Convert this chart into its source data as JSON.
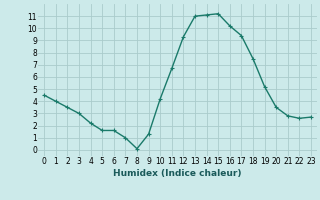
{
  "x": [
    0,
    1,
    2,
    3,
    4,
    5,
    6,
    7,
    8,
    9,
    10,
    11,
    12,
    13,
    14,
    15,
    16,
    17,
    18,
    19,
    20,
    21,
    22,
    23
  ],
  "y": [
    4.5,
    4.0,
    3.5,
    3.0,
    2.2,
    1.6,
    1.6,
    1.0,
    0.1,
    1.3,
    4.2,
    6.7,
    9.3,
    11.0,
    11.1,
    11.2,
    10.2,
    9.4,
    7.5,
    5.2,
    3.5,
    2.8,
    2.6,
    2.7
  ],
  "line_color": "#1a7a6a",
  "marker": "+",
  "marker_size": 3,
  "bg_color": "#cceaea",
  "grid_color": "#aacccc",
  "xlabel": "Humidex (Indice chaleur)",
  "xlim": [
    -0.5,
    23.5
  ],
  "ylim": [
    -0.5,
    12.0
  ],
  "xticks": [
    0,
    1,
    2,
    3,
    4,
    5,
    6,
    7,
    8,
    9,
    10,
    11,
    12,
    13,
    14,
    15,
    16,
    17,
    18,
    19,
    20,
    21,
    22,
    23
  ],
  "yticks": [
    0,
    1,
    2,
    3,
    4,
    5,
    6,
    7,
    8,
    9,
    10,
    11
  ],
  "tick_fontsize": 5.5,
  "xlabel_fontsize": 6.5,
  "line_width": 1.0
}
